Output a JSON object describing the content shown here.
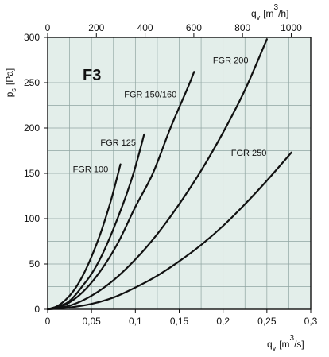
{
  "chart_data": {
    "type": "line",
    "title": "F3",
    "xlabel_bottom": {
      "symbol": "q",
      "subscript": "v",
      "unit_open": "[m",
      "unit_exp": "3",
      "unit_close": "/s]"
    },
    "xlabel_top": {
      "symbol": "q",
      "subscript": "v",
      "unit_open": "[m",
      "unit_exp": "3",
      "unit_close": "/h]"
    },
    "ylabel": {
      "symbol": "p",
      "subscript": "s",
      "unit": "[Pa]"
    },
    "xlim": [
      0,
      0.3
    ],
    "ylim": [
      0,
      300
    ],
    "x_ticks": [
      0,
      0.05,
      0.1,
      0.15,
      0.2,
      0.25,
      0.3
    ],
    "x_tick_labels": [
      "0",
      "0,05",
      "0,1",
      "0,15",
      "0,2",
      "0,25",
      "0,3"
    ],
    "x_top_ticks": [
      0,
      200,
      400,
      600,
      800,
      1000
    ],
    "x_top_tick_labels": [
      "0",
      "200",
      "400",
      "600",
      "800",
      "1000"
    ],
    "x_top_lim": [
      0,
      1080
    ],
    "y_ticks": [
      0,
      50,
      100,
      150,
      200,
      250,
      300
    ],
    "y_tick_labels": [
      "0",
      "50",
      "100",
      "150",
      "200",
      "250",
      "300"
    ],
    "grid": true,
    "background_color": "#e3eeea",
    "grid_color": "#8fa5a2",
    "line_color": "#111111",
    "series": [
      {
        "name": "FGR 100",
        "x": [
          0,
          0.01,
          0.02,
          0.03,
          0.04,
          0.05,
          0.06,
          0.07,
          0.075,
          0.083
        ],
        "y": [
          0,
          3,
          10,
          21,
          37,
          58,
          83,
          113,
          130,
          160
        ]
      },
      {
        "name": "FGR 125",
        "x": [
          0,
          0.02,
          0.03,
          0.04,
          0.05,
          0.06,
          0.07,
          0.08,
          0.09,
          0.1,
          0.11
        ],
        "y": [
          0,
          6,
          14,
          26,
          39,
          56,
          77,
          101,
          127,
          157,
          193
        ]
      },
      {
        "name": "FGR 150/160",
        "x": [
          0,
          0.02,
          0.04,
          0.06,
          0.08,
          0.1,
          0.12,
          0.14,
          0.16,
          0.167
        ],
        "y": [
          0,
          5,
          19,
          42,
          73,
          113,
          150,
          200,
          245,
          262
        ]
      },
      {
        "name": "FGR 200",
        "x": [
          0,
          0.025,
          0.05,
          0.075,
          0.1,
          0.125,
          0.15,
          0.175,
          0.2,
          0.225,
          0.25
        ],
        "y": [
          0,
          4,
          15,
          32,
          55,
          83,
          116,
          153,
          195,
          242,
          298
        ]
      },
      {
        "name": "FGR 250",
        "x": [
          0,
          0.025,
          0.05,
          0.075,
          0.1,
          0.125,
          0.15,
          0.175,
          0.2,
          0.225,
          0.25,
          0.278
        ],
        "y": [
          0,
          2,
          6,
          13,
          24,
          37,
          53,
          71,
          92,
          116,
          142,
          173
        ]
      }
    ]
  }
}
